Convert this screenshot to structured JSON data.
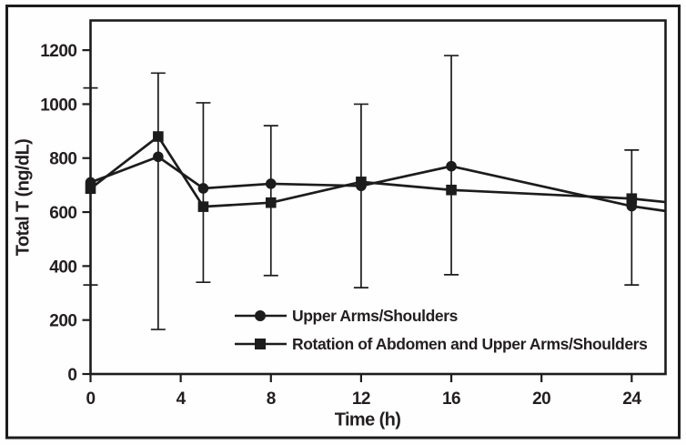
{
  "figure": {
    "background": "#fefefe",
    "frame_color": "#1c1c1c",
    "axis_color": "#1c1c1c",
    "text_color": "#231f20"
  },
  "chart_data": {
    "type": "line",
    "title": "",
    "xlabel": "Time (h)",
    "ylabel": "Total T (ng/dL)",
    "xlim": [
      0,
      25.5
    ],
    "ylim": [
      0,
      1310
    ],
    "x_ticks": [
      0,
      4,
      8,
      12,
      16,
      20,
      24
    ],
    "y_ticks": [
      0,
      200,
      400,
      600,
      800,
      1000,
      1200
    ],
    "grid": false,
    "legend_position": "inside-bottom-center",
    "x": [
      0,
      3,
      5,
      8,
      12,
      16,
      24
    ],
    "series": [
      {
        "name": "Upper Arms/Shoulders",
        "marker": "circle",
        "values": [
          710,
          805,
          688,
          705,
          697,
          770,
          622
        ],
        "clipped_continuation": {
          "x": 25.5,
          "y": 604
        }
      },
      {
        "name": "Rotation of Abdomen and Upper Arms/Shoulders",
        "marker": "square",
        "values": [
          687,
          880,
          620,
          635,
          712,
          682,
          650
        ],
        "clipped_continuation": {
          "x": 25.5,
          "y": 637
        }
      }
    ],
    "error_bars": [
      {
        "x": 0,
        "low": 330,
        "high": 1060
      },
      {
        "x": 3,
        "low": 165,
        "high": 1115
      },
      {
        "x": 5,
        "low": 340,
        "high": 1005
      },
      {
        "x": 8,
        "low": 365,
        "high": 920
      },
      {
        "x": 12,
        "low": 320,
        "high": 1000
      },
      {
        "x": 16,
        "low": 368,
        "high": 1180
      },
      {
        "x": 24,
        "low": 330,
        "high": 830
      }
    ]
  }
}
